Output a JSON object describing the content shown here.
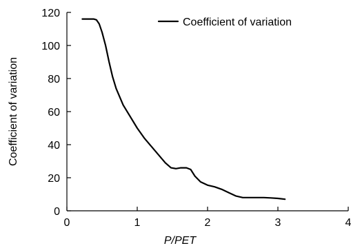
{
  "chart_data": {
    "type": "line",
    "title": "",
    "xlabel": "P/PET",
    "ylabel": "Coefficient of variation",
    "xlim": [
      0,
      4
    ],
    "ylim": [
      0,
      120
    ],
    "xticks": [
      0,
      1,
      2,
      3,
      4
    ],
    "yticks": [
      0,
      20,
      40,
      60,
      80,
      100,
      120
    ],
    "grid": false,
    "legend": {
      "position": "top-right"
    },
    "series": [
      {
        "name": "Coefficient of variation",
        "color": "#000000",
        "x": [
          0.22,
          0.3,
          0.38,
          0.42,
          0.46,
          0.5,
          0.55,
          0.6,
          0.65,
          0.7,
          0.8,
          0.9,
          1.0,
          1.1,
          1.2,
          1.3,
          1.4,
          1.48,
          1.55,
          1.62,
          1.7,
          1.76,
          1.82,
          1.9,
          2.0,
          2.1,
          2.2,
          2.3,
          2.4,
          2.5,
          2.55,
          2.6,
          2.7,
          2.8,
          2.9,
          3.0,
          3.1
        ],
        "y": [
          116,
          116,
          116,
          115.5,
          113,
          108,
          100,
          90,
          81,
          74,
          64,
          57,
          50,
          44,
          39,
          34,
          29,
          26,
          25.5,
          26,
          26,
          25,
          21,
          17.5,
          15.5,
          14.5,
          13,
          11,
          9,
          8,
          8,
          8,
          8,
          8,
          7.8,
          7.5,
          7
        ]
      }
    ]
  }
}
